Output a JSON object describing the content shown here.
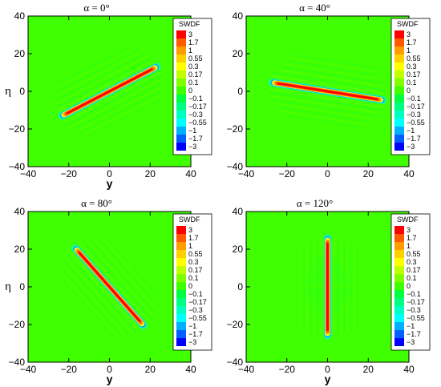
{
  "figure": {
    "panels": [
      {
        "title": "α = 0°",
        "band_angle_deg": 31,
        "half_length": 29,
        "half_width": 1.1
      },
      {
        "title": "α = 40°",
        "band_angle_deg": -10,
        "half_length": 30,
        "half_width": 1.1
      },
      {
        "title": "α = 80°",
        "band_angle_deg": -51,
        "half_length": 29,
        "half_width": 1.1
      },
      {
        "title": "α = 120°",
        "band_angle_deg": 90,
        "half_length": 29,
        "half_width": 1.1
      }
    ]
  },
  "chart_data": [
    {
      "type": "heatmap",
      "title": "α = 0°",
      "xlabel": "y",
      "ylabel": "η",
      "xlim": [
        -40,
        40
      ],
      "ylim": [
        -40,
        40
      ],
      "xticks": [
        -40,
        -20,
        0,
        20,
        40
      ],
      "yticks": [
        -40,
        -20,
        0,
        20,
        40
      ],
      "xtick_labels": [
        "−40",
        "−20",
        "0",
        "20",
        "40"
      ],
      "ytick_labels": [
        "−40",
        "−20",
        "0",
        "20",
        "40"
      ],
      "band": {
        "start": [
          -25,
          -14
        ],
        "end": [
          25,
          14
        ]
      },
      "legend": {
        "title": "SWDF",
        "placement": "right-inside",
        "levels": [
          "3",
          "1.7",
          "1",
          "0.55",
          "0.3",
          "0.17",
          "0.1",
          "0",
          "−0.1",
          "−0.17",
          "−0.3",
          "−0.55",
          "−1",
          "−1.7",
          "−3"
        ],
        "colors": [
          "#ff0000",
          "#ff5a00",
          "#ff9c00",
          "#ffd000",
          "#ffff00",
          "#c0ff00",
          "#80ff00",
          "#40ff00",
          "#00ff40",
          "#00ff80",
          "#00ffc0",
          "#00ffff",
          "#00b0ff",
          "#0060ff",
          "#0000ff"
        ]
      }
    },
    {
      "type": "heatmap",
      "title": "α = 40°",
      "xlabel": "",
      "ylabel": "",
      "xlim": [
        -40,
        40
      ],
      "ylim": [
        -40,
        40
      ],
      "xticks": [
        -40,
        -20,
        0,
        20,
        40
      ],
      "yticks": [
        -40,
        -20,
        0,
        20,
        40
      ],
      "xtick_labels": [
        "−40",
        "−20",
        "0",
        "20",
        "40"
      ],
      "ytick_labels": [
        "−40",
        "−20",
        "0",
        "20",
        "40"
      ],
      "band": {
        "start": [
          -29,
          5
        ],
        "end": [
          29,
          -5
        ]
      },
      "legend": {
        "title": "SWDF",
        "placement": "right-inside",
        "levels": [
          "3",
          "1.7",
          "1",
          "0.55",
          "0.3",
          "0.17",
          "0.1",
          "0",
          "−0.1",
          "−0.17",
          "−0.3",
          "−0.55",
          "−1",
          "−1.7",
          "−3"
        ],
        "colors": [
          "#ff0000",
          "#ff5a00",
          "#ff9c00",
          "#ffd000",
          "#ffff00",
          "#c0ff00",
          "#80ff00",
          "#40ff00",
          "#00ff40",
          "#00ff80",
          "#00ffc0",
          "#00ffff",
          "#00b0ff",
          "#0060ff",
          "#0000ff"
        ]
      }
    },
    {
      "type": "heatmap",
      "title": "α = 80°",
      "xlabel": "y",
      "ylabel": "η",
      "xlim": [
        -40,
        40
      ],
      "ylim": [
        -40,
        40
      ],
      "xticks": [
        -40,
        -20,
        0,
        20,
        40
      ],
      "yticks": [
        -40,
        -20,
        0,
        20,
        40
      ],
      "xtick_labels": [
        "−40",
        "−20",
        "0",
        "20",
        "40"
      ],
      "ytick_labels": [
        "−40",
        "−20",
        "0",
        "20",
        "40"
      ],
      "band": {
        "start": [
          -18,
          22
        ],
        "end": [
          18,
          -22
        ]
      },
      "legend": {
        "title": "SWDF",
        "placement": "right-inside",
        "levels": [
          "3",
          "1.7",
          "1",
          "0.55",
          "0.3",
          "0.17",
          "0.1",
          "0",
          "−0.1",
          "−0.17",
          "−0.3",
          "−0.55",
          "−1",
          "−1.7",
          "−3"
        ],
        "colors": [
          "#ff0000",
          "#ff5a00",
          "#ff9c00",
          "#ffd000",
          "#ffff00",
          "#c0ff00",
          "#80ff00",
          "#40ff00",
          "#00ff40",
          "#00ff80",
          "#00ffc0",
          "#00ffff",
          "#00b0ff",
          "#0060ff",
          "#0000ff"
        ]
      }
    },
    {
      "type": "heatmap",
      "title": "α = 120°",
      "xlabel": "y",
      "ylabel": "",
      "xlim": [
        -40,
        40
      ],
      "ylim": [
        -40,
        40
      ],
      "xticks": [
        -40,
        -20,
        0,
        20,
        40
      ],
      "yticks": [
        -40,
        -20,
        0,
        20,
        40
      ],
      "xtick_labels": [
        "−40",
        "−20",
        "0",
        "20",
        "40"
      ],
      "ytick_labels": [
        "−40",
        "−20",
        "0",
        "20",
        "40"
      ],
      "band": {
        "start": [
          0,
          28
        ],
        "end": [
          0,
          -28
        ]
      },
      "legend": {
        "title": "SWDF",
        "placement": "right-inside",
        "levels": [
          "3",
          "1.7",
          "1",
          "0.55",
          "0.3",
          "0.17",
          "0.1",
          "0",
          "−0.1",
          "−0.17",
          "−0.3",
          "−0.55",
          "−1",
          "−1.7",
          "−3"
        ],
        "colors": [
          "#ff0000",
          "#ff5a00",
          "#ff9c00",
          "#ffd000",
          "#ffff00",
          "#c0ff00",
          "#80ff00",
          "#40ff00",
          "#00ff40",
          "#00ff80",
          "#00ffc0",
          "#00ffff",
          "#00b0ff",
          "#0060ff",
          "#0000ff"
        ]
      }
    }
  ]
}
